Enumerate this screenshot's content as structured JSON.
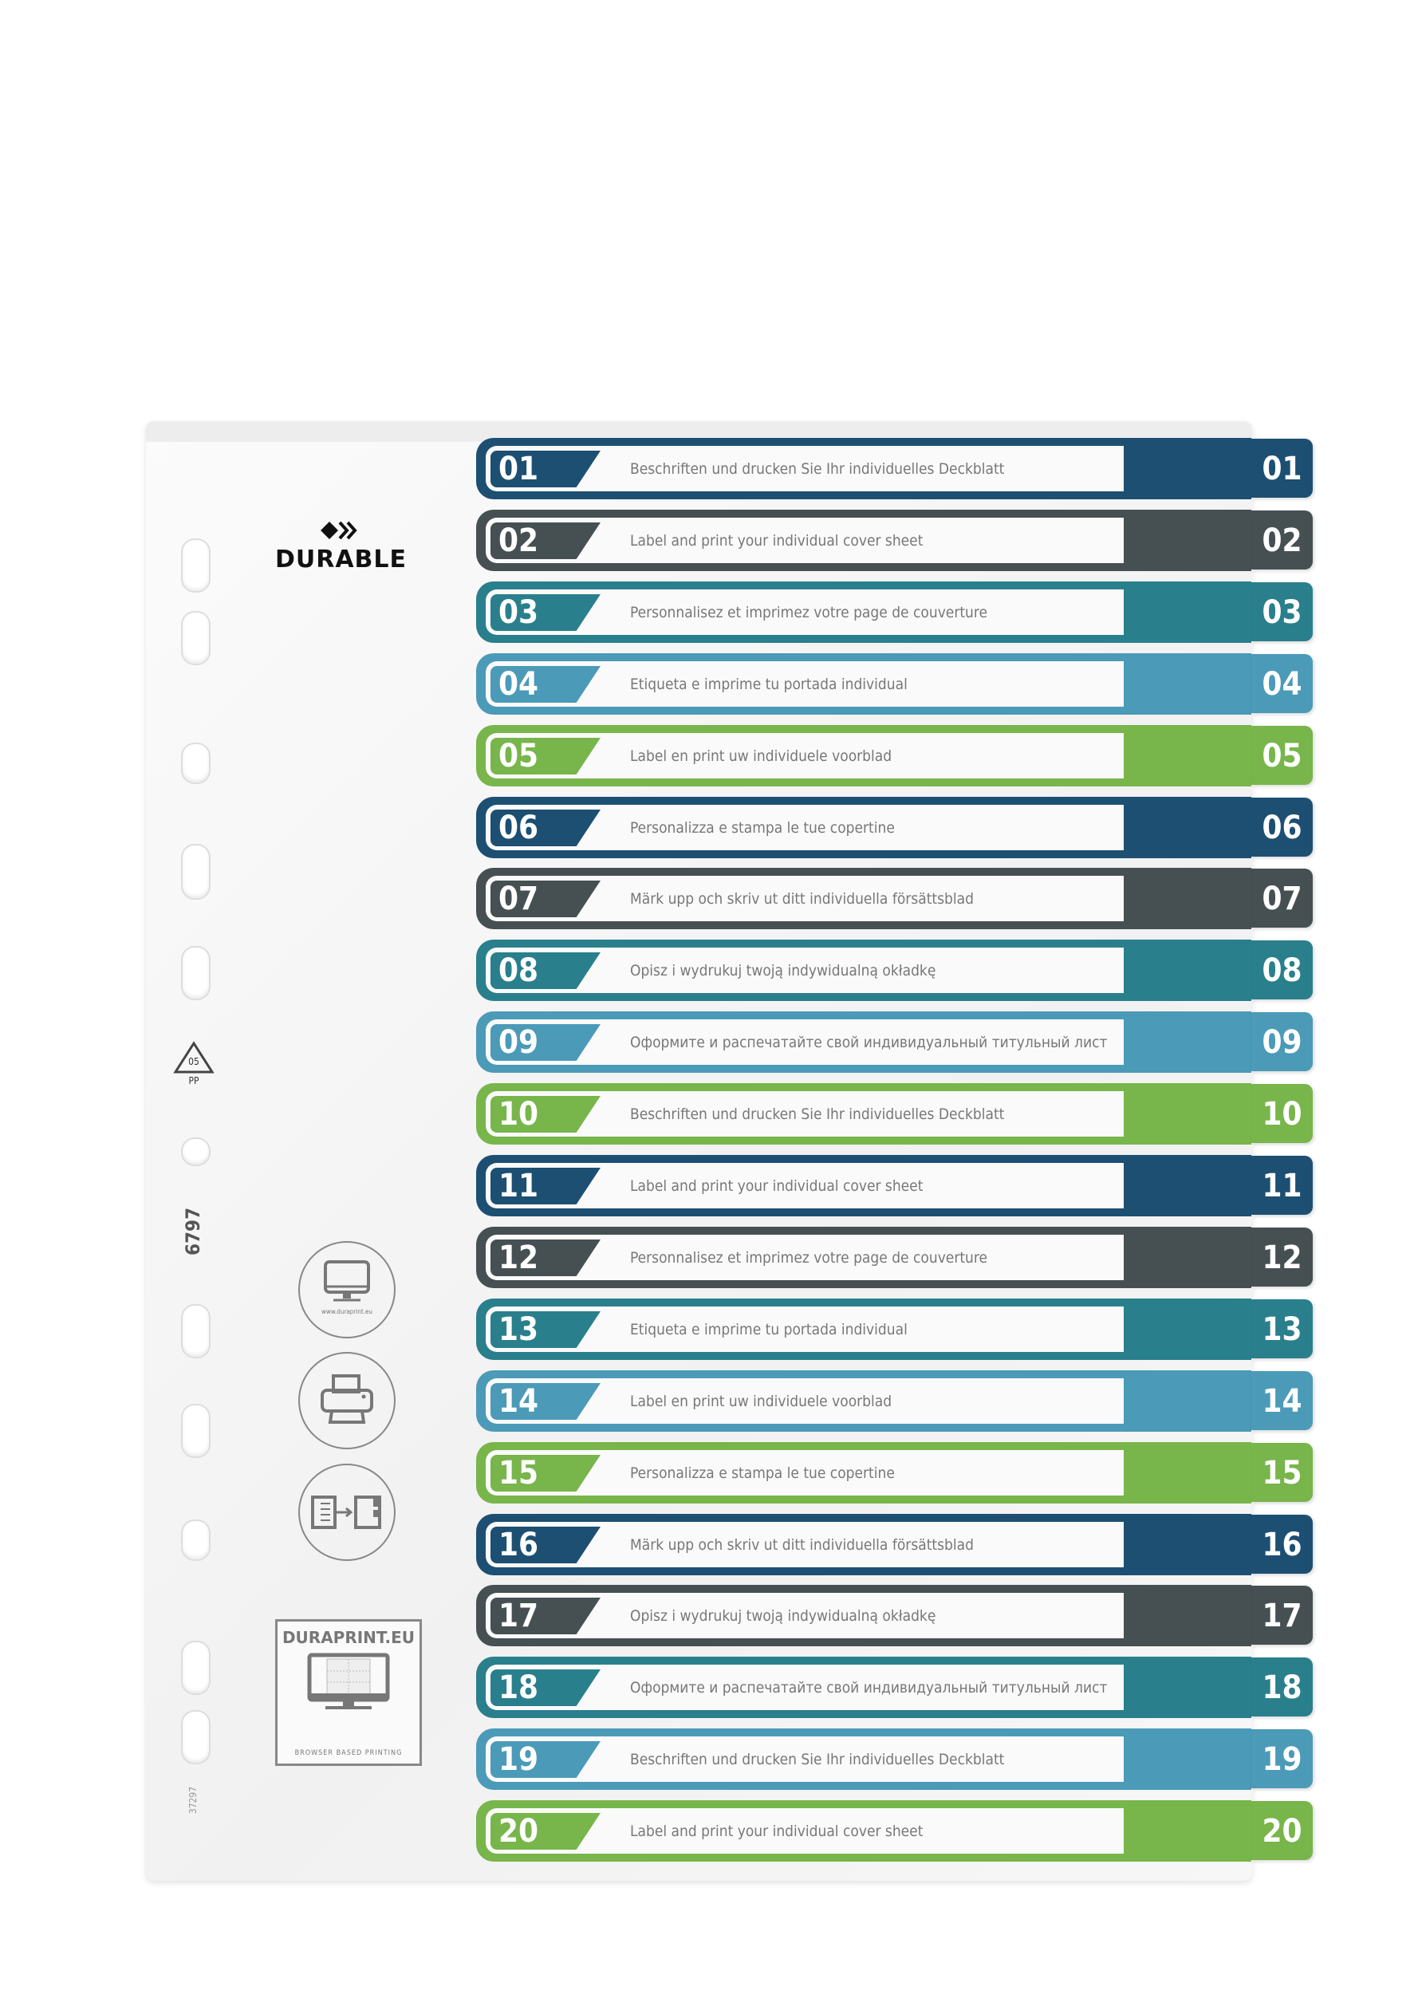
{
  "brand": {
    "logo": "DURABLE"
  },
  "recycle": {
    "code": "05",
    "material": "PP"
  },
  "product_number": "6797",
  "article_code": "37297",
  "icons": {
    "computer_caption": "www.duraprint.eu",
    "names": [
      "computer-icon",
      "printer-icon",
      "document-to-divider-icon"
    ]
  },
  "duraprint": {
    "title": "DURAPRINT.EU",
    "subtitle": "BROWSER BASED PRINTING"
  },
  "colors": [
    "#1d4f73",
    "#465053",
    "#2a7f8c",
    "#4b9ab8",
    "#78b54b"
  ],
  "rows": [
    {
      "num": "01",
      "text": "Beschriften und drucken Sie Ihr individuelles Deckblatt"
    },
    {
      "num": "02",
      "text": "Label and print your individual cover sheet"
    },
    {
      "num": "03",
      "text": "Personnalisez et imprimez votre page de couverture"
    },
    {
      "num": "04",
      "text": "Etiqueta e imprime tu portada individual"
    },
    {
      "num": "05",
      "text": "Label en print uw individuele voorblad"
    },
    {
      "num": "06",
      "text": "Personalizza e stampa le tue copertine"
    },
    {
      "num": "07",
      "text": "Märk upp och skriv ut ditt individuella försättsblad"
    },
    {
      "num": "08",
      "text": "Opisz i wydrukuj twoją indywidualną okładkę"
    },
    {
      "num": "09",
      "text": "Оформите и распечатайте свой индивидуальный титульный лист"
    },
    {
      "num": "10",
      "text": "Beschriften und drucken Sie Ihr individuelles Deckblatt"
    },
    {
      "num": "11",
      "text": "Label and print your individual cover sheet"
    },
    {
      "num": "12",
      "text": "Personnalisez et imprimez votre page de couverture"
    },
    {
      "num": "13",
      "text": "Etiqueta e imprime tu portada individual"
    },
    {
      "num": "14",
      "text": "Label en print uw individuele voorblad"
    },
    {
      "num": "15",
      "text": "Personalizza e stampa le tue copertine"
    },
    {
      "num": "16",
      "text": "Märk upp och skriv ut ditt individuella försättsblad"
    },
    {
      "num": "17",
      "text": "Opisz i wydrukuj twoją indywidualną okładkę"
    },
    {
      "num": "18",
      "text": "Оформите и распечатайте свой индивидуальный титульный лист"
    },
    {
      "num": "19",
      "text": "Beschriften und drucken Sie Ihr individuelles Deckblatt"
    },
    {
      "num": "20",
      "text": "Label and print your individual cover sheet"
    }
  ]
}
